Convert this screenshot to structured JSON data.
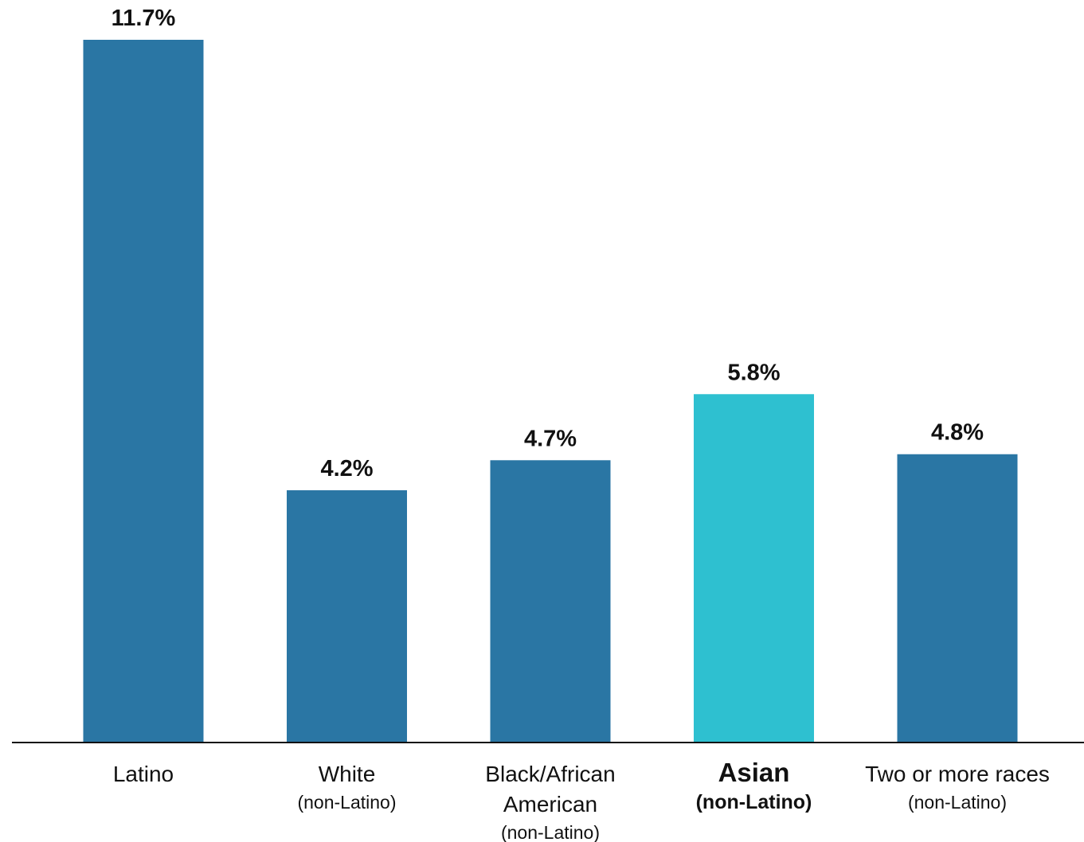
{
  "chart_data": {
    "type": "bar",
    "title": "",
    "xlabel": "",
    "ylabel": "",
    "ylim": [
      0,
      11.7
    ],
    "grid": false,
    "legend": "none",
    "value_format": "{v}%",
    "categories": [
      {
        "lines": [
          "Latino"
        ],
        "sub": "",
        "highlight": false
      },
      {
        "lines": [
          "White"
        ],
        "sub": "(non-Latino)",
        "highlight": false
      },
      {
        "lines": [
          "Black/African",
          "American"
        ],
        "sub": "(non-Latino)",
        "highlight": false
      },
      {
        "lines": [
          "Asian"
        ],
        "sub": "(non-Latino)",
        "highlight": true
      },
      {
        "lines": [
          "Two or more races"
        ],
        "sub": "(non-Latino)",
        "highlight": false
      }
    ],
    "values": [
      11.7,
      4.2,
      4.7,
      5.8,
      4.8
    ],
    "value_labels": [
      "11.7%",
      "4.2%",
      "4.7%",
      "5.8%",
      "4.8%"
    ],
    "colors": {
      "default": "#2a76a4",
      "highlight": "#2ec0d0",
      "axis": "#111111"
    }
  }
}
